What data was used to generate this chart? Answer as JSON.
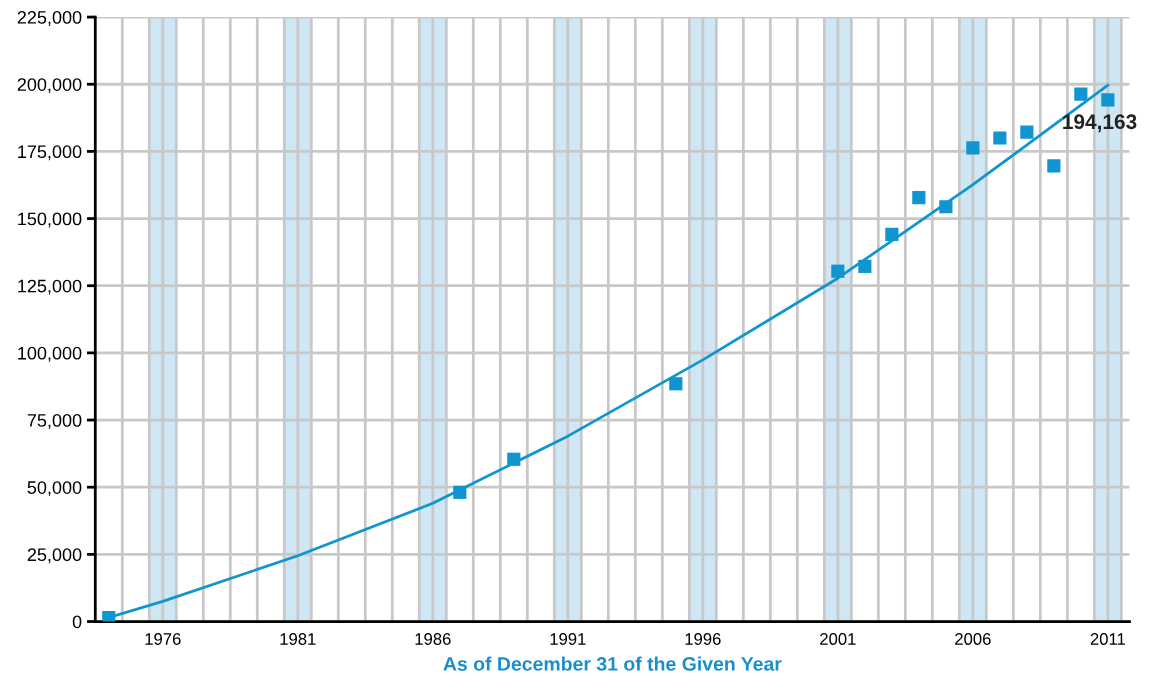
{
  "chart_data": {
    "type": "scatter",
    "xlabel": "As of December 31 of the Given Year",
    "series": [
      {
        "marker": "square",
        "color": "#0f95d0",
        "x": [
          1974,
          1987,
          1989,
          1995,
          2001,
          2002,
          2003,
          2004,
          2005,
          2006,
          2007,
          2008,
          2009,
          2010,
          2011
        ],
        "values": [
          1500,
          48100,
          60400,
          88500,
          130400,
          132200,
          144100,
          157800,
          154400,
          176300,
          180000,
          182200,
          169600,
          196300,
          194163
        ],
        "value_labels": [
          null,
          null,
          null,
          null,
          null,
          null,
          null,
          null,
          null,
          null,
          null,
          null,
          null,
          null,
          "194,163"
        ]
      },
      {
        "type": "line",
        "marker": "none",
        "color": "#0f95d0",
        "x": [
          1974,
          1976,
          1981,
          1986,
          1991,
          1996,
          2001,
          2006,
          2011
        ],
        "values": [
          1500,
          7500,
          24500,
          44000,
          69000,
          97400,
          127800,
          162600,
          199600
        ]
      }
    ],
    "xlim": [
      1973.5,
      2011.8
    ],
    "ylim": [
      0,
      225000
    ],
    "xticks": [
      {
        "value": 1974.5,
        "label": null
      },
      {
        "value": 1975.5,
        "label": null
      },
      1976,
      {
        "value": 1976.5,
        "label": null
      },
      {
        "value": 1977.5,
        "label": null
      },
      {
        "value": 1978.5,
        "label": null
      },
      {
        "value": 1979.5,
        "label": null
      },
      {
        "value": 1980.5,
        "label": null
      },
      1981,
      {
        "value": 1981.5,
        "label": null
      },
      {
        "value": 1982.5,
        "label": null
      },
      {
        "value": 1983.5,
        "label": null
      },
      {
        "value": 1984.5,
        "label": null
      },
      {
        "value": 1985.5,
        "label": null
      },
      1986,
      {
        "value": 1986.5,
        "label": null
      },
      {
        "value": 1987.5,
        "label": null
      },
      {
        "value": 1988.5,
        "label": null
      },
      {
        "value": 1989.5,
        "label": null
      },
      {
        "value": 1990.5,
        "label": null
      },
      1991,
      {
        "value": 1991.5,
        "label": null
      },
      {
        "value": 1992.5,
        "label": null
      },
      {
        "value": 1993.5,
        "label": null
      },
      {
        "value": 1994.5,
        "label": null
      },
      {
        "value": 1995.5,
        "label": null
      },
      1996,
      {
        "value": 1996.5,
        "label": null
      },
      {
        "value": 1997.5,
        "label": null
      },
      {
        "value": 1998.5,
        "label": null
      },
      {
        "value": 1999.5,
        "label": null
      },
      {
        "value": 2000.5,
        "label": null
      },
      2001,
      {
        "value": 2001.5,
        "label": null
      },
      {
        "value": 2002.5,
        "label": null
      },
      {
        "value": 2003.5,
        "label": null
      },
      {
        "value": 2004.5,
        "label": null
      },
      {
        "value": 2005.5,
        "label": null
      },
      2006,
      {
        "value": 2006.5,
        "label": null
      },
      {
        "value": 2007.5,
        "label": null
      },
      {
        "value": 2008.5,
        "label": null
      },
      {
        "value": 2009.5,
        "label": null
      },
      {
        "value": 2010.5,
        "label": null
      },
      2011,
      {
        "value": 2011.5,
        "label": null
      }
    ],
    "yticks": [
      0,
      {
        "value": 25000,
        "label": "25,000"
      },
      {
        "value": 50000,
        "label": "50,000"
      },
      {
        "value": 75000,
        "label": "75,000"
      },
      {
        "value": 100000,
        "label": "100,000"
      },
      {
        "value": 125000,
        "label": "125,000"
      },
      {
        "value": 150000,
        "label": "150,000"
      },
      {
        "value": 175000,
        "label": "175,000"
      },
      {
        "value": 200000,
        "label": "200,000"
      },
      {
        "value": 225000,
        "label": "225,000"
      }
    ],
    "bands": [
      {
        "axis": "x",
        "from": 1975.5,
        "to": 1976.5,
        "color": "#cfe6f5"
      },
      {
        "axis": "x",
        "from": 1980.5,
        "to": 1981.5,
        "color": "#cfe6f5"
      },
      {
        "axis": "x",
        "from": 1985.5,
        "to": 1986.5,
        "color": "#cfe6f5"
      },
      {
        "axis": "x",
        "from": 1990.5,
        "to": 1991.5,
        "color": "#cfe6f5"
      },
      {
        "axis": "x",
        "from": 1995.5,
        "to": 1996.5,
        "color": "#cfe6f5"
      },
      {
        "axis": "x",
        "from": 2000.5,
        "to": 2001.5,
        "color": "#cfe6f5"
      },
      {
        "axis": "x",
        "from": 2005.5,
        "to": 2006.5,
        "color": "#cfe6f5"
      },
      {
        "axis": "x",
        "from": 2010.5,
        "to": 2011.5,
        "color": "#cfe6f5"
      }
    ],
    "grid": true,
    "legend": false
  }
}
